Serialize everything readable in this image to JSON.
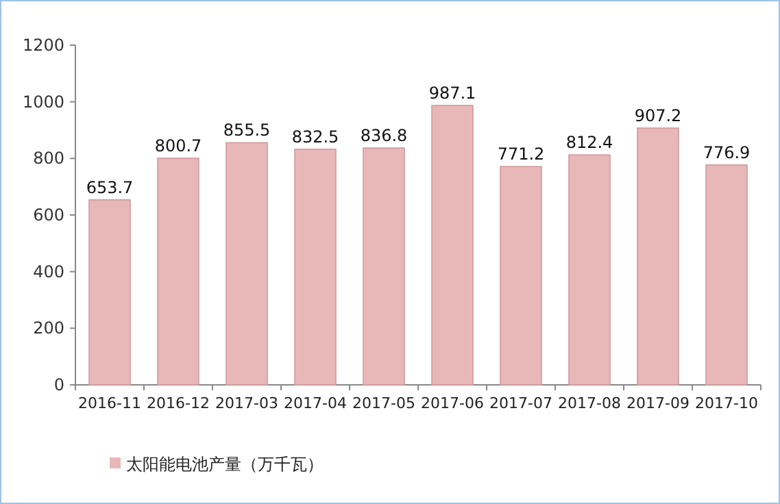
{
  "chart_data": {
    "type": "bar",
    "categories": [
      "2016-11",
      "2016-12",
      "2017-03",
      "2017-04",
      "2017-05",
      "2017-06",
      "2017-07",
      "2017-08",
      "2017-09",
      "2017-10"
    ],
    "series": [
      {
        "name": "太阳能电池产量（万千瓦）",
        "color": "#e8b8b8",
        "values": [
          653.7,
          800.7,
          855.5,
          832.5,
          836.8,
          987.1,
          771.2,
          812.4,
          907.2,
          776.9
        ]
      }
    ],
    "ylim": [
      0,
      1200
    ],
    "yticks": [
      0,
      200,
      400,
      600,
      800,
      1000,
      1200
    ],
    "data_labels": true,
    "legend": "bottom",
    "grid": false
  }
}
